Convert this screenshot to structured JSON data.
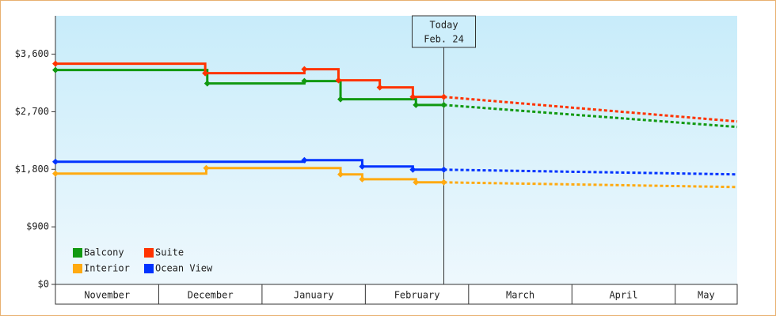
{
  "chart_data": {
    "type": "step-line",
    "annotation": {
      "lines": [
        "Today",
        "Feb. 24"
      ],
      "x": 3.76
    },
    "xlim": [
      0,
      6.6
    ],
    "xticks": [
      {
        "value": 0.5,
        "label": "November"
      },
      {
        "value": 1.5,
        "label": "December"
      },
      {
        "value": 2.5,
        "label": "January"
      },
      {
        "value": 3.5,
        "label": "February"
      },
      {
        "value": 4.5,
        "label": "March"
      },
      {
        "value": 5.5,
        "label": "April"
      },
      {
        "value": 6.3,
        "label": "May"
      }
    ],
    "ylim": [
      0,
      4200
    ],
    "yticks": [
      {
        "value": 0,
        "label": "$0"
      },
      {
        "value": 900,
        "label": "$900"
      },
      {
        "value": 1800,
        "label": "$1,800"
      },
      {
        "value": 2700,
        "label": "$2,700"
      },
      {
        "value": 3600,
        "label": "$3,600"
      }
    ],
    "legend": "bottom-left",
    "series": [
      {
        "name": "Balcony",
        "color": "#119911",
        "x": [
          0,
          1.47,
          2.41,
          2.76,
          3.49,
          3.76
        ],
        "values": [
          3353,
          3142,
          3179,
          2895,
          2806,
          2806
        ],
        "projection_x": [
          3.76,
          6.6
        ],
        "projection_values": [
          2806,
          2462
        ]
      },
      {
        "name": "Suite",
        "color": "#ff3300",
        "x": [
          0,
          1.45,
          2.41,
          2.74,
          3.14,
          3.46,
          3.76
        ],
        "values": [
          3451,
          3303,
          3365,
          3192,
          3080,
          2932,
          2932
        ],
        "projection_x": [
          3.76,
          6.6
        ],
        "projection_values": [
          2932,
          2548
        ]
      },
      {
        "name": "Interior",
        "color": "#ffaa11",
        "x": [
          0,
          1.46,
          2.76,
          2.97,
          3.49,
          3.76
        ],
        "values": [
          1732,
          1819,
          1720,
          1645,
          1596,
          1596
        ],
        "projection_x": [
          3.76,
          6.6
        ],
        "projection_values": [
          1596,
          1522
        ]
      },
      {
        "name": "Ocean View",
        "color": "#0033ff",
        "x": [
          0,
          2.41,
          2.97,
          3.46,
          3.76
        ],
        "values": [
          1918,
          1942,
          1843,
          1794,
          1794
        ],
        "projection_x": [
          3.76,
          6.6
        ],
        "projection_values": [
          1794,
          1720
        ]
      }
    ]
  }
}
